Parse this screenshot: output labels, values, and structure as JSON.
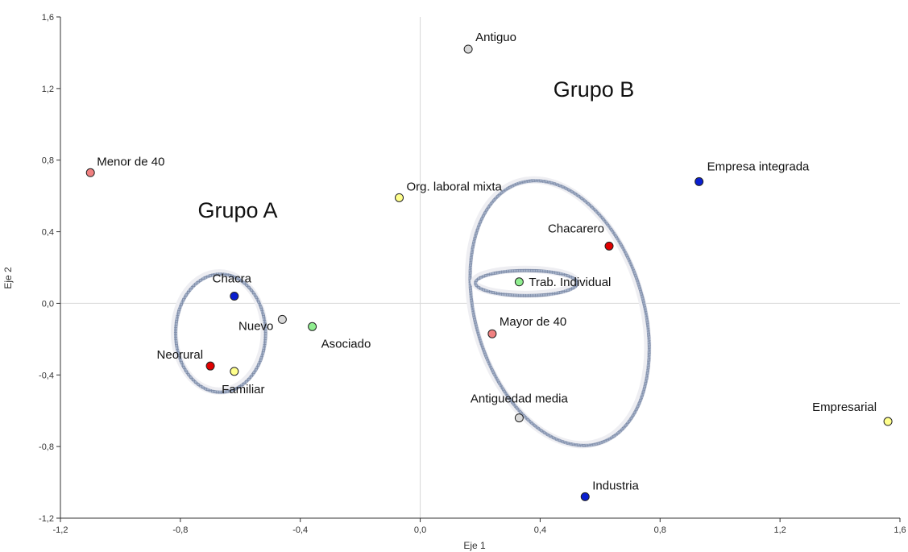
{
  "chart_data": {
    "type": "scatter",
    "title": "",
    "xlabel": "Eje 1",
    "ylabel": "Eje 2",
    "xlim": [
      -1.2,
      1.6
    ],
    "ylim": [
      -1.2,
      1.6
    ],
    "x_ticks": [
      -1.2,
      -0.8,
      -0.4,
      0.0,
      0.4,
      0.8,
      1.2,
      1.6
    ],
    "y_ticks": [
      -1.2,
      -0.8,
      -0.4,
      0.0,
      0.4,
      0.8,
      1.2,
      1.6
    ],
    "x_tick_labels": [
      "-1,2",
      "-0,8",
      "-0,4",
      "0,0",
      "0,4",
      "0,8",
      "1,2",
      "1,6"
    ],
    "y_tick_labels": [
      "-1,2",
      "-0,8",
      "-0,4",
      "0,0",
      "0,4",
      "0,8",
      "1,2",
      "1,6"
    ],
    "grid": false,
    "reference_lines": [
      {
        "axis": "x",
        "value": 0
      },
      {
        "axis": "y",
        "value": 0
      }
    ],
    "points": [
      {
        "label": "Antiguo",
        "x": 0.16,
        "y": 1.42,
        "color": "#d9d9d9"
      },
      {
        "label": "Menor de 40",
        "x": -1.1,
        "y": 0.73,
        "color": "#f08080"
      },
      {
        "label": "Empresa integrada",
        "x": 0.93,
        "y": 0.68,
        "color": "#0a1fd0"
      },
      {
        "label": "Org. laboral mixta",
        "x": -0.07,
        "y": 0.59,
        "color": "#ffff8c"
      },
      {
        "label": "Chacarero",
        "x": 0.63,
        "y": 0.32,
        "color": "#e00000"
      },
      {
        "label": "Trab. Individual",
        "x": 0.33,
        "y": 0.12,
        "color": "#90ee90"
      },
      {
        "label": "Chacra",
        "x": -0.62,
        "y": 0.04,
        "color": "#0a1fd0"
      },
      {
        "label": "Nuevo",
        "x": -0.46,
        "y": -0.09,
        "color": "#d9d9d9"
      },
      {
        "label": "Asociado",
        "x": -0.36,
        "y": -0.13,
        "color": "#90ee90"
      },
      {
        "label": "Mayor de 40",
        "x": 0.24,
        "y": -0.17,
        "color": "#f08080"
      },
      {
        "label": "Neorural",
        "x": -0.7,
        "y": -0.35,
        "color": "#e00000"
      },
      {
        "label": "Familiar",
        "x": -0.62,
        "y": -0.38,
        "color": "#ffff8c"
      },
      {
        "label": "Antiguedad media",
        "x": 0.33,
        "y": -0.64,
        "color": "#d9d9d9"
      },
      {
        "label": "Empresarial",
        "x": 1.56,
        "y": -0.66,
        "color": "#ffff8c"
      },
      {
        "label": "Industria",
        "x": 0.55,
        "y": -1.08,
        "color": "#0a1fd0"
      }
    ],
    "groups": [
      {
        "label": "Grupo A",
        "cx": -0.67,
        "cy": -0.16,
        "rx": 0.15,
        "ry": 0.33,
        "rotation": 0
      },
      {
        "label": "Grupo B",
        "cx": 0.46,
        "cy": -0.05,
        "rx": 0.28,
        "ry": 0.76,
        "rotation": -17
      },
      {
        "label": "",
        "cx": 0.35,
        "cy": 0.12,
        "rx": 0.17,
        "ry": 0.07,
        "rotation": 0
      }
    ]
  }
}
